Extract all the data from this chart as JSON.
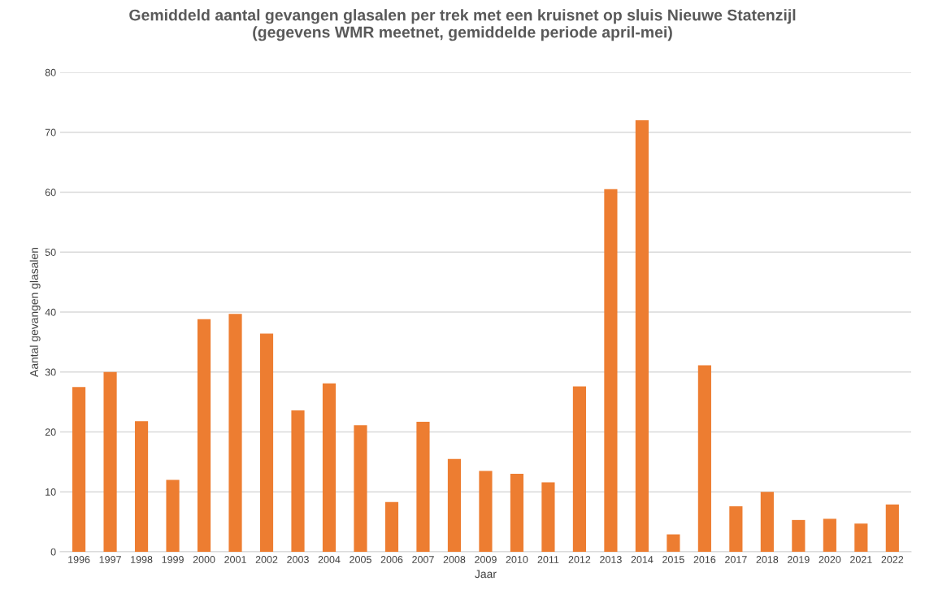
{
  "chart_data": {
    "type": "bar",
    "title": "Gemiddeld aantal gevangen glasalen per trek met een kruisnet op sluis Nieuwe Statenzijl\n(gegevens WMR meetnet, gemiddelde periode april-mei)",
    "xlabel": "Jaar",
    "ylabel": "Aantal gevangen glasalen",
    "categories": [
      "1996",
      "1997",
      "1998",
      "1999",
      "2000",
      "2001",
      "2002",
      "2003",
      "2004",
      "2005",
      "2006",
      "2007",
      "2008",
      "2009",
      "2010",
      "2011",
      "2012",
      "2013",
      "2014",
      "2015",
      "2016",
      "2017",
      "2018",
      "2019",
      "2020",
      "2021",
      "2022"
    ],
    "values": [
      27.5,
      30,
      21.8,
      12,
      38.8,
      39.7,
      36.4,
      23.6,
      28.1,
      21.1,
      8.3,
      21.7,
      15.5,
      13.5,
      13,
      11.6,
      27.6,
      60.5,
      72,
      2.9,
      31.1,
      7.6,
      10,
      5.3,
      5.5,
      4.7,
      7.9
    ],
    "color": "#ed7d31",
    "ylim": [
      0,
      80
    ],
    "yticks": [
      0,
      10,
      20,
      30,
      40,
      50,
      60,
      70,
      80
    ],
    "grid": "y"
  }
}
